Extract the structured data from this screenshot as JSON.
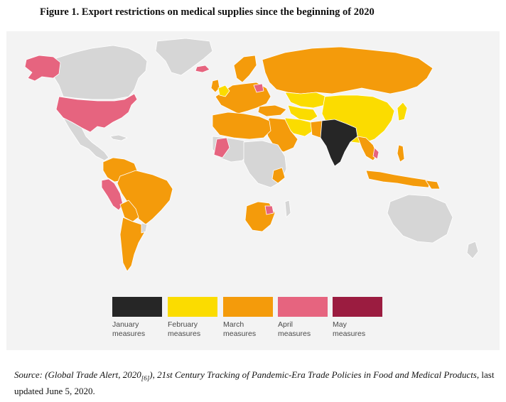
{
  "figure": {
    "title": "Figure 1. Export restrictions on medical supplies since the beginning of 2020"
  },
  "legend": [
    {
      "line1": "January",
      "line2": "measures",
      "color": "#262626"
    },
    {
      "line1": "February",
      "line2": "measures",
      "color": "#fbdc00"
    },
    {
      "line1": "March",
      "line2": "measures",
      "color": "#f49b0b"
    },
    {
      "line1": "April",
      "line2": "measures",
      "color": "#e6647f"
    },
    {
      "line1": "May",
      "line2": "measures",
      "color": "#9b1c40"
    }
  ],
  "colors": {
    "background": "#f3f3f3",
    "no_measures": "#d6d6d6",
    "border": "#ffffff"
  },
  "source": {
    "label": "Source:",
    "cite_a": "(Global Trade Alert, 2020",
    "ref": "[6]",
    "cite_b": "), 21st Century Tracking of Pandemic-Era Trade Policies in Food and Medical Products",
    "tail": ", last updated June 5, 2020."
  }
}
